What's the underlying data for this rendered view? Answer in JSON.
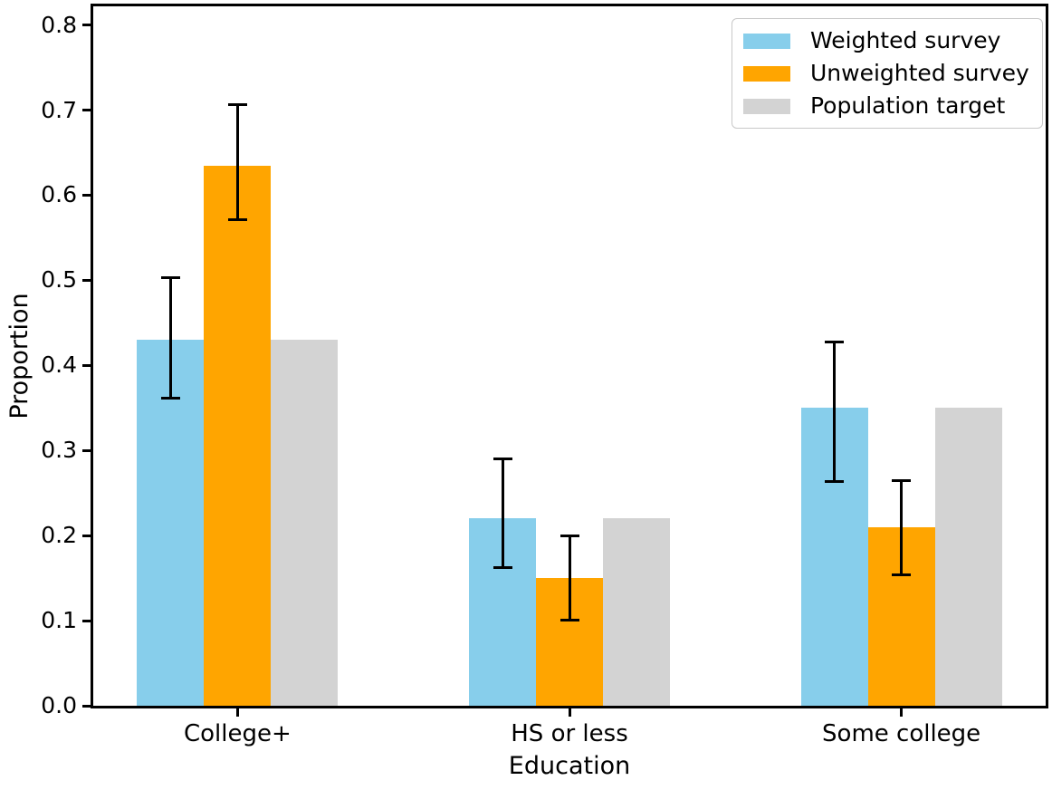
{
  "chart_data": {
    "type": "bar",
    "title": "",
    "xlabel": "Education",
    "ylabel": "Proportion",
    "categories": [
      "College+",
      "HS or less",
      "Some college"
    ],
    "series": [
      {
        "name": "Weighted survey",
        "color": "#87CEEB",
        "values": [
          0.43,
          0.22,
          0.35
        ],
        "err_low": [
          0.362,
          0.162,
          0.263
        ],
        "err_high": [
          0.503,
          0.29,
          0.428
        ]
      },
      {
        "name": "Unweighted survey",
        "color": "#FFA500",
        "values": [
          0.635,
          0.15,
          0.21
        ],
        "err_low": [
          0.571,
          0.101,
          0.154
        ],
        "err_high": [
          0.706,
          0.2,
          0.265
        ]
      },
      {
        "name": "Population target",
        "color": "#D3D3D3",
        "values": [
          0.43,
          0.22,
          0.35
        ],
        "err_low": null,
        "err_high": null
      }
    ],
    "ylim": [
      0,
      0.822
    ],
    "yticks": [
      0.0,
      0.1,
      0.2,
      0.3,
      0.4,
      0.5,
      0.6,
      0.7,
      0.8
    ],
    "ytick_format_decimals": 1,
    "grid": false,
    "legend_position": "upper right",
    "errorbar_color": "#000000",
    "background_color": "#ffffff"
  }
}
